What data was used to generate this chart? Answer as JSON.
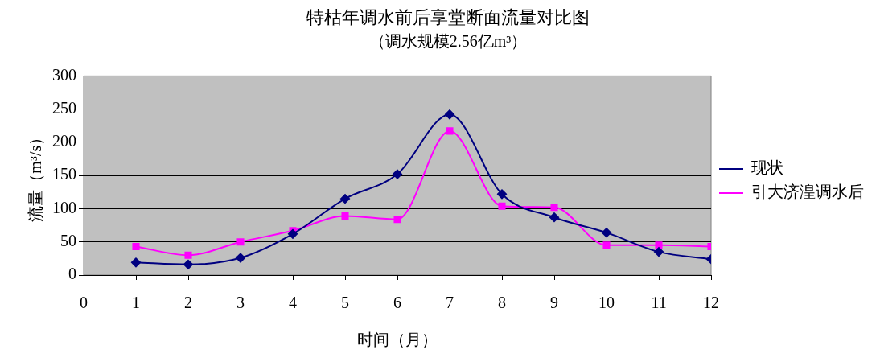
{
  "chart_data": {
    "type": "line",
    "title": "特枯年调水前后享堂断面流量对比图",
    "subtitle": "（调水规模2.56亿m³）",
    "xlabel": "时间（月）",
    "ylabel": "流量（m³/s）",
    "x": [
      1,
      2,
      3,
      4,
      5,
      6,
      7,
      8,
      9,
      10,
      11,
      12
    ],
    "series": [
      {
        "name": "现状",
        "color": "#000080",
        "marker": "diamond",
        "values": [
          19,
          16,
          26,
          62,
          115,
          152,
          242,
          122,
          87,
          64,
          35,
          24
        ]
      },
      {
        "name": "引大济湟调水后",
        "color": "#ff00ff",
        "marker": "square",
        "values": [
          43,
          30,
          50,
          67,
          89,
          84,
          217,
          104,
          102,
          45,
          45,
          43
        ]
      }
    ],
    "xlim": [
      0,
      12
    ],
    "xticks": [
      0,
      1,
      2,
      3,
      4,
      5,
      6,
      7,
      8,
      9,
      10,
      11,
      12
    ],
    "ylim": [
      0,
      300
    ],
    "yticks": [
      0,
      50,
      100,
      150,
      200,
      250,
      300
    ],
    "grid": "y",
    "legend": "right"
  }
}
